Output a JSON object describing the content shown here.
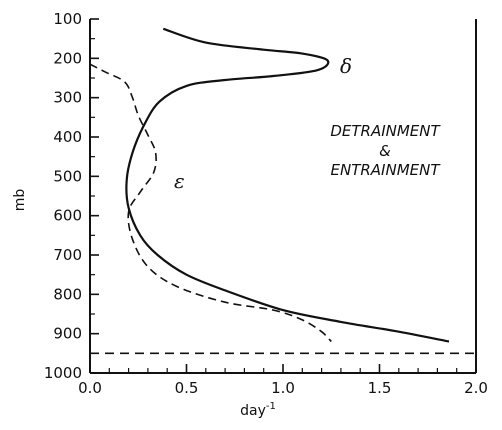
{
  "chart_data": {
    "type": "line",
    "xlabel": "day",
    "xlabel_superscript": "-1",
    "ylabel": "mb",
    "xlim": [
      0.0,
      2.0
    ],
    "ylim": [
      100,
      1000
    ],
    "y_inverted": true,
    "x_ticks": [
      "0.0",
      "0.5",
      "1.0",
      "1.5",
      "2.0"
    ],
    "y_ticks": [
      "100",
      "200",
      "300",
      "400",
      "500",
      "600",
      "700",
      "800",
      "900",
      "1000"
    ],
    "annotation": [
      "DETRAINMENT",
      "&",
      "ENTRAINMENT"
    ],
    "series": [
      {
        "name": "δ",
        "style": "solid",
        "points": [
          {
            "x": 0.38,
            "y": 125
          },
          {
            "x": 0.6,
            "y": 160
          },
          {
            "x": 0.9,
            "y": 178
          },
          {
            "x": 1.1,
            "y": 188
          },
          {
            "x": 1.23,
            "y": 205
          },
          {
            "x": 1.18,
            "y": 230
          },
          {
            "x": 0.95,
            "y": 245
          },
          {
            "x": 0.7,
            "y": 255
          },
          {
            "x": 0.5,
            "y": 270
          },
          {
            "x": 0.36,
            "y": 310
          },
          {
            "x": 0.28,
            "y": 370
          },
          {
            "x": 0.22,
            "y": 440
          },
          {
            "x": 0.19,
            "y": 510
          },
          {
            "x": 0.2,
            "y": 580
          },
          {
            "x": 0.26,
            "y": 650
          },
          {
            "x": 0.35,
            "y": 700
          },
          {
            "x": 0.5,
            "y": 750
          },
          {
            "x": 0.7,
            "y": 790
          },
          {
            "x": 1.0,
            "y": 840
          },
          {
            "x": 1.3,
            "y": 870
          },
          {
            "x": 1.6,
            "y": 895
          },
          {
            "x": 1.86,
            "y": 920
          }
        ]
      },
      {
        "name": "ε",
        "style": "dashed",
        "points": [
          {
            "x": 0.0,
            "y": 215
          },
          {
            "x": 0.08,
            "y": 235
          },
          {
            "x": 0.18,
            "y": 260
          },
          {
            "x": 0.22,
            "y": 300
          },
          {
            "x": 0.25,
            "y": 345
          },
          {
            "x": 0.3,
            "y": 395
          },
          {
            "x": 0.34,
            "y": 440
          },
          {
            "x": 0.33,
            "y": 490
          },
          {
            "x": 0.26,
            "y": 540
          },
          {
            "x": 0.2,
            "y": 590
          },
          {
            "x": 0.22,
            "y": 660
          },
          {
            "x": 0.3,
            "y": 730
          },
          {
            "x": 0.45,
            "y": 780
          },
          {
            "x": 0.7,
            "y": 820
          },
          {
            "x": 0.95,
            "y": 840
          },
          {
            "x": 1.1,
            "y": 865
          },
          {
            "x": 1.2,
            "y": 895
          },
          {
            "x": 1.25,
            "y": 920
          }
        ]
      }
    ],
    "reference_lines": [
      {
        "orientation": "horizontal",
        "y": 950,
        "style": "dashed"
      }
    ]
  }
}
